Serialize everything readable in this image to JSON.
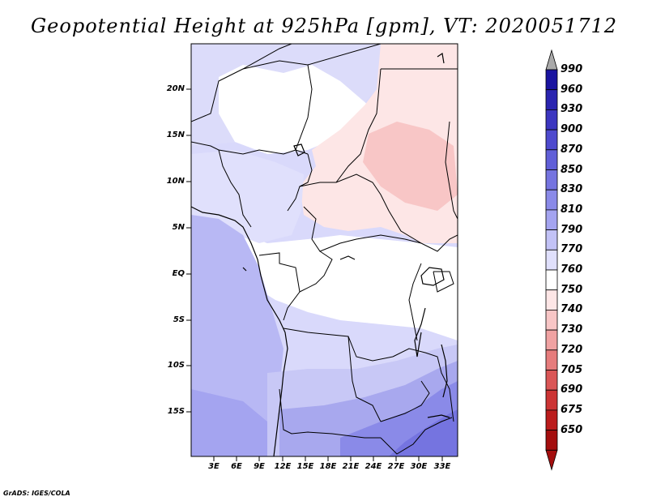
{
  "title": "Geopotential Height at 925hPa [gpm], VT: 2020051712",
  "lat_labels": [
    "20N",
    "15N",
    "10N",
    "5N",
    "EQ",
    "5S",
    "10S",
    "15S"
  ],
  "lon_labels": [
    "3E",
    "6E",
    "9E",
    "12E",
    "15E",
    "18E",
    "21E",
    "24E",
    "27E",
    "30E",
    "33E"
  ],
  "colorbar": {
    "levels": [
      "990",
      "960",
      "930",
      "900",
      "870",
      "850",
      "830",
      "810",
      "790",
      "770",
      "760",
      "750",
      "740",
      "730",
      "720",
      "705",
      "690",
      "675",
      "650"
    ],
    "colors": [
      "#1a14a0",
      "#2a24b0",
      "#3c36c0",
      "#4e4ace",
      "#605fd8",
      "#7574e0",
      "#8a8ae8",
      "#a4a4f0",
      "#c2c2f6",
      "#e0e0fc",
      "#ffffff",
      "#fde6e6",
      "#f8c6c6",
      "#f0a2a2",
      "#e67c7c",
      "#da5656",
      "#cc3434",
      "#bb1c1c",
      "#a40e0e"
    ]
  },
  "credit": "GrADS: IGES/COLA"
}
